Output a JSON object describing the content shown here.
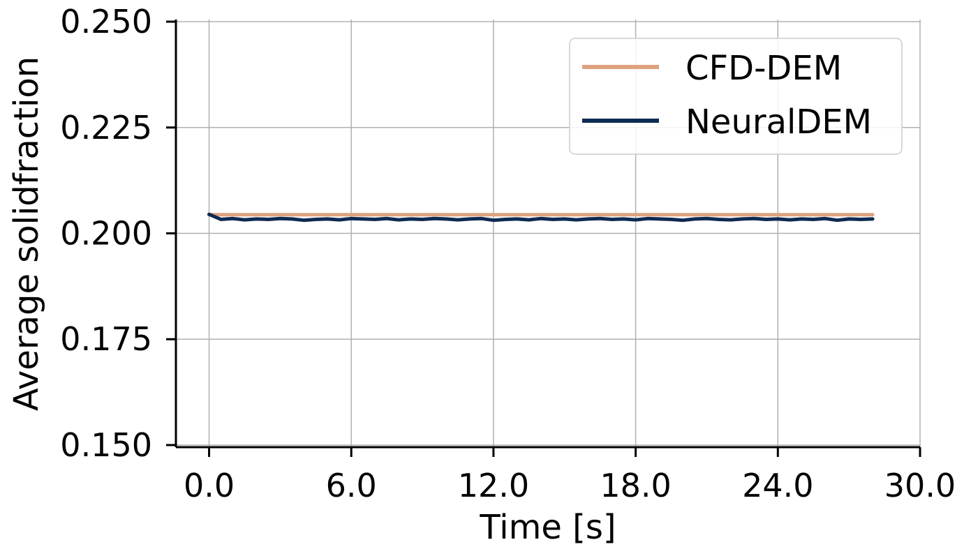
{
  "chart_data": {
    "type": "line",
    "xlabel": "Time [s]",
    "ylabel": "Average solidfraction",
    "xlim": [
      -1.4,
      30.0
    ],
    "ylim": [
      0.1495,
      0.2505
    ],
    "xticks": [
      "0.0",
      "6.0",
      "12.0",
      "18.0",
      "24.0",
      "30.0"
    ],
    "xtick_values": [
      0,
      6,
      12,
      18,
      24,
      30
    ],
    "yticks": [
      "0.150",
      "0.175",
      "0.200",
      "0.225",
      "0.250"
    ],
    "ytick_values": [
      0.15,
      0.175,
      0.2,
      0.225,
      0.25
    ],
    "grid": true,
    "legend_position": "top-right",
    "series": [
      {
        "name": "CFD-DEM",
        "color": "#dea27f",
        "x": [
          0,
          28
        ],
        "y": [
          0.2044,
          0.2044
        ]
      },
      {
        "name": "NeuralDEM",
        "color": "#0d2a52",
        "x": [
          0,
          0.5,
          1,
          1.5,
          2,
          2.5,
          3,
          3.5,
          4,
          4.5,
          5,
          5.5,
          6,
          6.5,
          7,
          7.5,
          8,
          8.5,
          9,
          9.5,
          10,
          10.5,
          11,
          11.5,
          12,
          12.5,
          13,
          13.5,
          14,
          14.5,
          15,
          15.5,
          16,
          16.5,
          17,
          17.5,
          18,
          18.5,
          19,
          19.5,
          20,
          20.5,
          21,
          21.5,
          22,
          22.5,
          23,
          23.5,
          24,
          24.5,
          25,
          25.5,
          26,
          26.5,
          27,
          27.5,
          28
        ],
        "y": [
          0.2045,
          0.2033,
          0.2035,
          0.2032,
          0.2034,
          0.2033,
          0.2035,
          0.2034,
          0.2031,
          0.2033,
          0.2034,
          0.2032,
          0.2035,
          0.2034,
          0.2033,
          0.2035,
          0.2032,
          0.2034,
          0.2033,
          0.2035,
          0.2034,
          0.2032,
          0.2034,
          0.2035,
          0.2031,
          0.2033,
          0.2034,
          0.2032,
          0.2035,
          0.2033,
          0.2034,
          0.2032,
          0.2034,
          0.2035,
          0.2033,
          0.2034,
          0.2032,
          0.2035,
          0.2034,
          0.2033,
          0.2031,
          0.2034,
          0.2035,
          0.2033,
          0.2032,
          0.2034,
          0.2035,
          0.2033,
          0.2034,
          0.2032,
          0.2034,
          0.2033,
          0.2035,
          0.2031,
          0.2034,
          0.2033,
          0.2034
        ]
      }
    ]
  }
}
